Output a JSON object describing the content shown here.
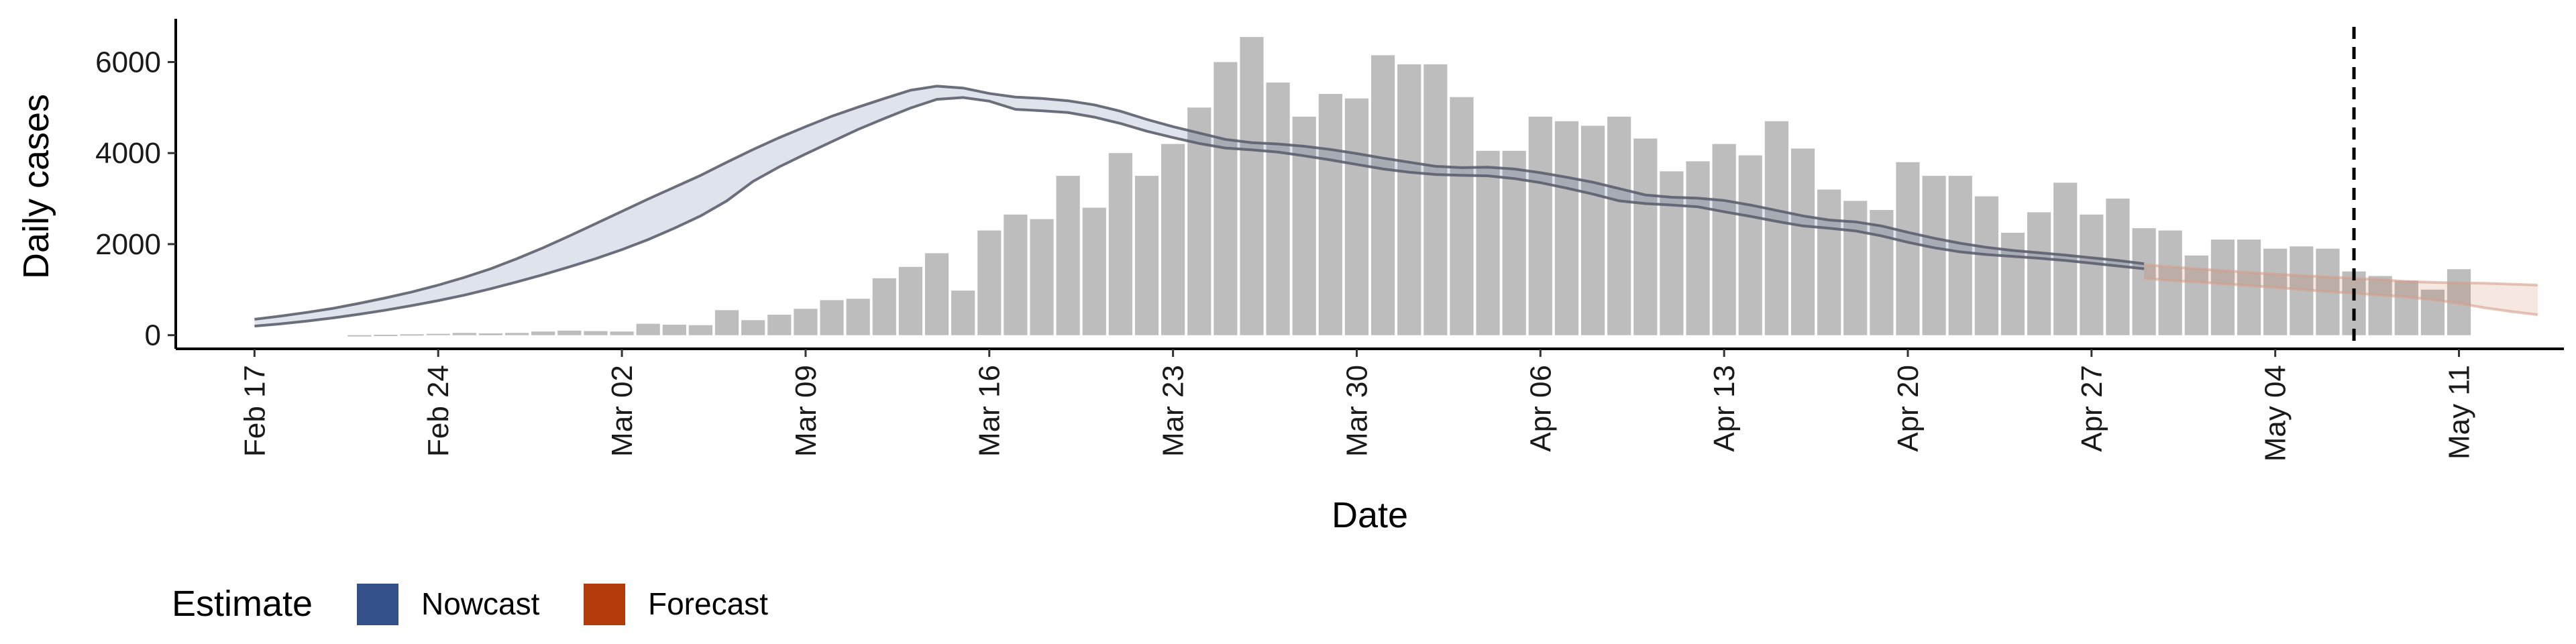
{
  "chart_data": {
    "type": "bar",
    "title": "",
    "xlabel": "Date",
    "ylabel": "Daily cases",
    "ylim": [
      -300,
      6950
    ],
    "yticks": [
      0,
      2000,
      4000,
      6000
    ],
    "ytick_labels": [
      "0",
      "2000",
      "4000",
      "6000"
    ],
    "xlim": [
      "2020-02-14",
      "2020-05-15"
    ],
    "xticks": [
      "2020-02-17",
      "2020-02-24",
      "2020-03-02",
      "2020-03-09",
      "2020-03-16",
      "2020-03-23",
      "2020-03-30",
      "2020-04-06",
      "2020-04-13",
      "2020-04-20",
      "2020-04-27",
      "2020-05-04",
      "2020-05-11"
    ],
    "xtick_labels": [
      "Feb 17",
      "Feb 24",
      "Mar 02",
      "Mar 09",
      "Mar 16",
      "Mar 23",
      "Mar 30",
      "Apr 06",
      "Apr 13",
      "Apr 20",
      "Apr 27",
      "May 04",
      "May 11"
    ],
    "grid": false,
    "legend_position": "bottom-left",
    "vline_date": "2020-05-07",
    "bars": {
      "start_date": "2020-02-21",
      "color": "#bdbdbd",
      "values": [
        0,
        10,
        20,
        30,
        50,
        40,
        50,
        80,
        100,
        90,
        80,
        250,
        230,
        220,
        550,
        330,
        450,
        580,
        770,
        800,
        1250,
        1500,
        1800,
        980,
        2300,
        2650,
        2550,
        3500,
        2800,
        4000,
        3500,
        4200,
        5000,
        6000,
        6550,
        5550,
        4800,
        5300,
        5200,
        6150,
        5950,
        5950,
        5230,
        4050,
        4050,
        4800,
        4700,
        4600,
        4800,
        4320,
        3600,
        3820,
        4200,
        3950,
        4700,
        4100,
        3200,
        2950,
        2750,
        3800,
        3500,
        3500,
        3050,
        2250,
        2700,
        3350,
        2650,
        3000,
        2350,
        2300,
        1750,
        2100,
        2100,
        1900,
        1950,
        1900,
        1400,
        1300,
        1200,
        1000,
        1450
      ]
    },
    "series": [
      {
        "name": "Nowcast",
        "color": "#34508a",
        "start_date": "2020-02-17",
        "upper": [
          350,
          420,
          500,
          590,
          700,
          820,
          950,
          1100,
          1270,
          1460,
          1680,
          1920,
          2180,
          2450,
          2720,
          2990,
          3250,
          3510,
          3800,
          4080,
          4340,
          4580,
          4810,
          5010,
          5200,
          5380,
          5470,
          5430,
          5310,
          5230,
          5200,
          5150,
          5060,
          4920,
          4740,
          4580,
          4440,
          4300,
          4230,
          4200,
          4150,
          4080,
          3990,
          3890,
          3800,
          3710,
          3680,
          3690,
          3650,
          3570,
          3470,
          3360,
          3220,
          3080,
          3030,
          3010,
          2960,
          2860,
          2740,
          2620,
          2530,
          2490,
          2400,
          2260,
          2130,
          2020,
          1930,
          1860,
          1810,
          1760,
          1700,
          1640,
          1570
        ],
        "lower": [
          200,
          250,
          310,
          380,
          460,
          550,
          650,
          760,
          880,
          1020,
          1170,
          1330,
          1500,
          1680,
          1880,
          2100,
          2350,
          2620,
          2950,
          3380,
          3700,
          3980,
          4250,
          4520,
          4760,
          4990,
          5180,
          5220,
          5140,
          4960,
          4930,
          4890,
          4790,
          4650,
          4480,
          4340,
          4210,
          4110,
          4070,
          4020,
          3940,
          3850,
          3750,
          3650,
          3580,
          3530,
          3510,
          3500,
          3440,
          3350,
          3230,
          3100,
          2950,
          2890,
          2860,
          2820,
          2710,
          2610,
          2500,
          2400,
          2350,
          2290,
          2180,
          2040,
          1920,
          1830,
          1770,
          1730,
          1690,
          1640,
          1580,
          1520,
          1460
        ]
      },
      {
        "name": "Forecast",
        "color": "#b33a0b",
        "start_date": "2020-04-29",
        "upper": [
          1550,
          1500,
          1460,
          1420,
          1380,
          1340,
          1310,
          1280,
          1250,
          1220,
          1180,
          1160,
          1150,
          1140,
          1120,
          1100
        ],
        "lower": [
          1250,
          1200,
          1170,
          1130,
          1090,
          1050,
          1000,
          960,
          920,
          880,
          840,
          780,
          700,
          600,
          520,
          450
        ]
      }
    ]
  },
  "legend": {
    "title": "Estimate",
    "items": [
      {
        "label": "Nowcast",
        "color": "#34508a"
      },
      {
        "label": "Forecast",
        "color": "#b33a0b"
      }
    ]
  }
}
